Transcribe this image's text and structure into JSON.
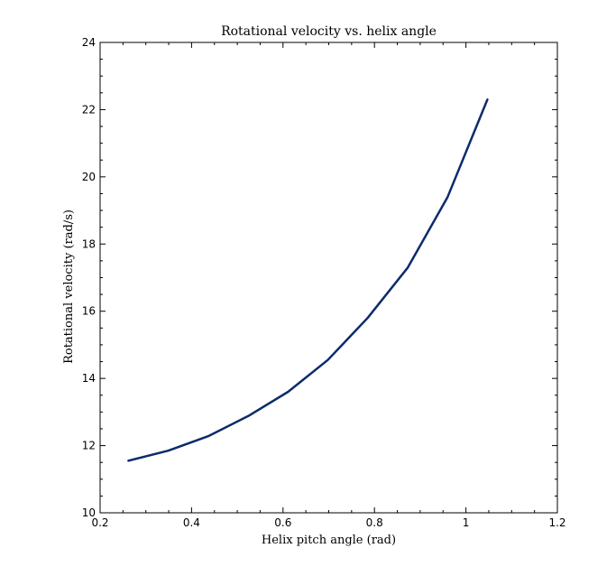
{
  "chart_data": {
    "type": "line",
    "title": "Rotational velocity vs. helix angle",
    "xlabel": "Helix pitch angle (rad)",
    "ylabel": "Rotational velocity (rad/s)",
    "xlim": [
      0.2,
      1.2
    ],
    "ylim": [
      10,
      24
    ],
    "x_ticks": [
      0.2,
      0.4,
      0.6,
      0.8,
      1,
      1.2
    ],
    "x_tick_labels": [
      "0.2",
      "0.4",
      "0.6",
      "0.8",
      "1",
      "1.2"
    ],
    "y_ticks": [
      10,
      12,
      14,
      16,
      18,
      20,
      22,
      24
    ],
    "y_tick_labels": [
      "10",
      "12",
      "14",
      "16",
      "18",
      "20",
      "22",
      "24"
    ],
    "grid": false,
    "legend": "none",
    "series": [
      {
        "color": "#0b2b6b",
        "x": [
          0.262,
          0.349,
          0.436,
          0.524,
          0.611,
          0.698,
          0.785,
          0.873,
          0.96,
          1.047
        ],
        "y": [
          11.55,
          11.85,
          12.28,
          12.88,
          13.6,
          14.55,
          15.8,
          17.3,
          19.4,
          22.3
        ]
      }
    ]
  }
}
